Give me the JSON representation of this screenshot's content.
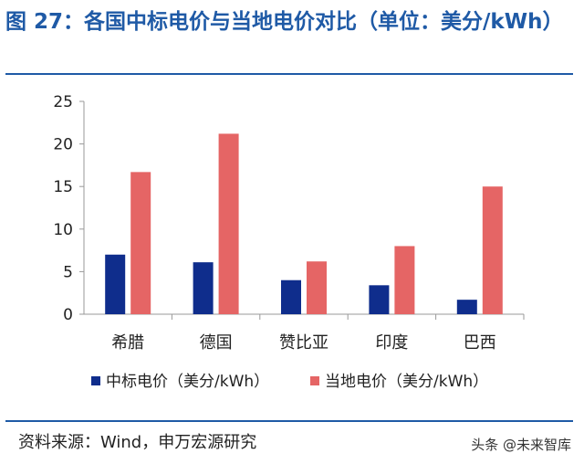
{
  "header": {
    "title": "图 27：各国中标电价与当地电价对比（单位：美分/kWh）"
  },
  "footer": {
    "source": "资料来源：Wind，申万宏源研究",
    "watermark": "头条 @未来智库"
  },
  "chart_data": {
    "type": "bar",
    "title": "",
    "xlabel": "",
    "ylabel": "",
    "categories": [
      "希腊",
      "德国",
      "赞比亚",
      "印度",
      "巴西"
    ],
    "series": [
      {
        "name": "中标电价（美分/kWh）",
        "color": "#0f2d8c",
        "values": [
          7.0,
          6.1,
          4.0,
          3.4,
          1.7
        ]
      },
      {
        "name": "当地电价（美分/kWh）",
        "color": "#e56565",
        "values": [
          16.7,
          21.2,
          6.2,
          8.0,
          15.0
        ]
      }
    ],
    "ylim": [
      0,
      25
    ],
    "yticks": [
      0,
      5,
      10,
      15,
      20,
      25
    ],
    "grid": false,
    "legend": "bottom"
  }
}
